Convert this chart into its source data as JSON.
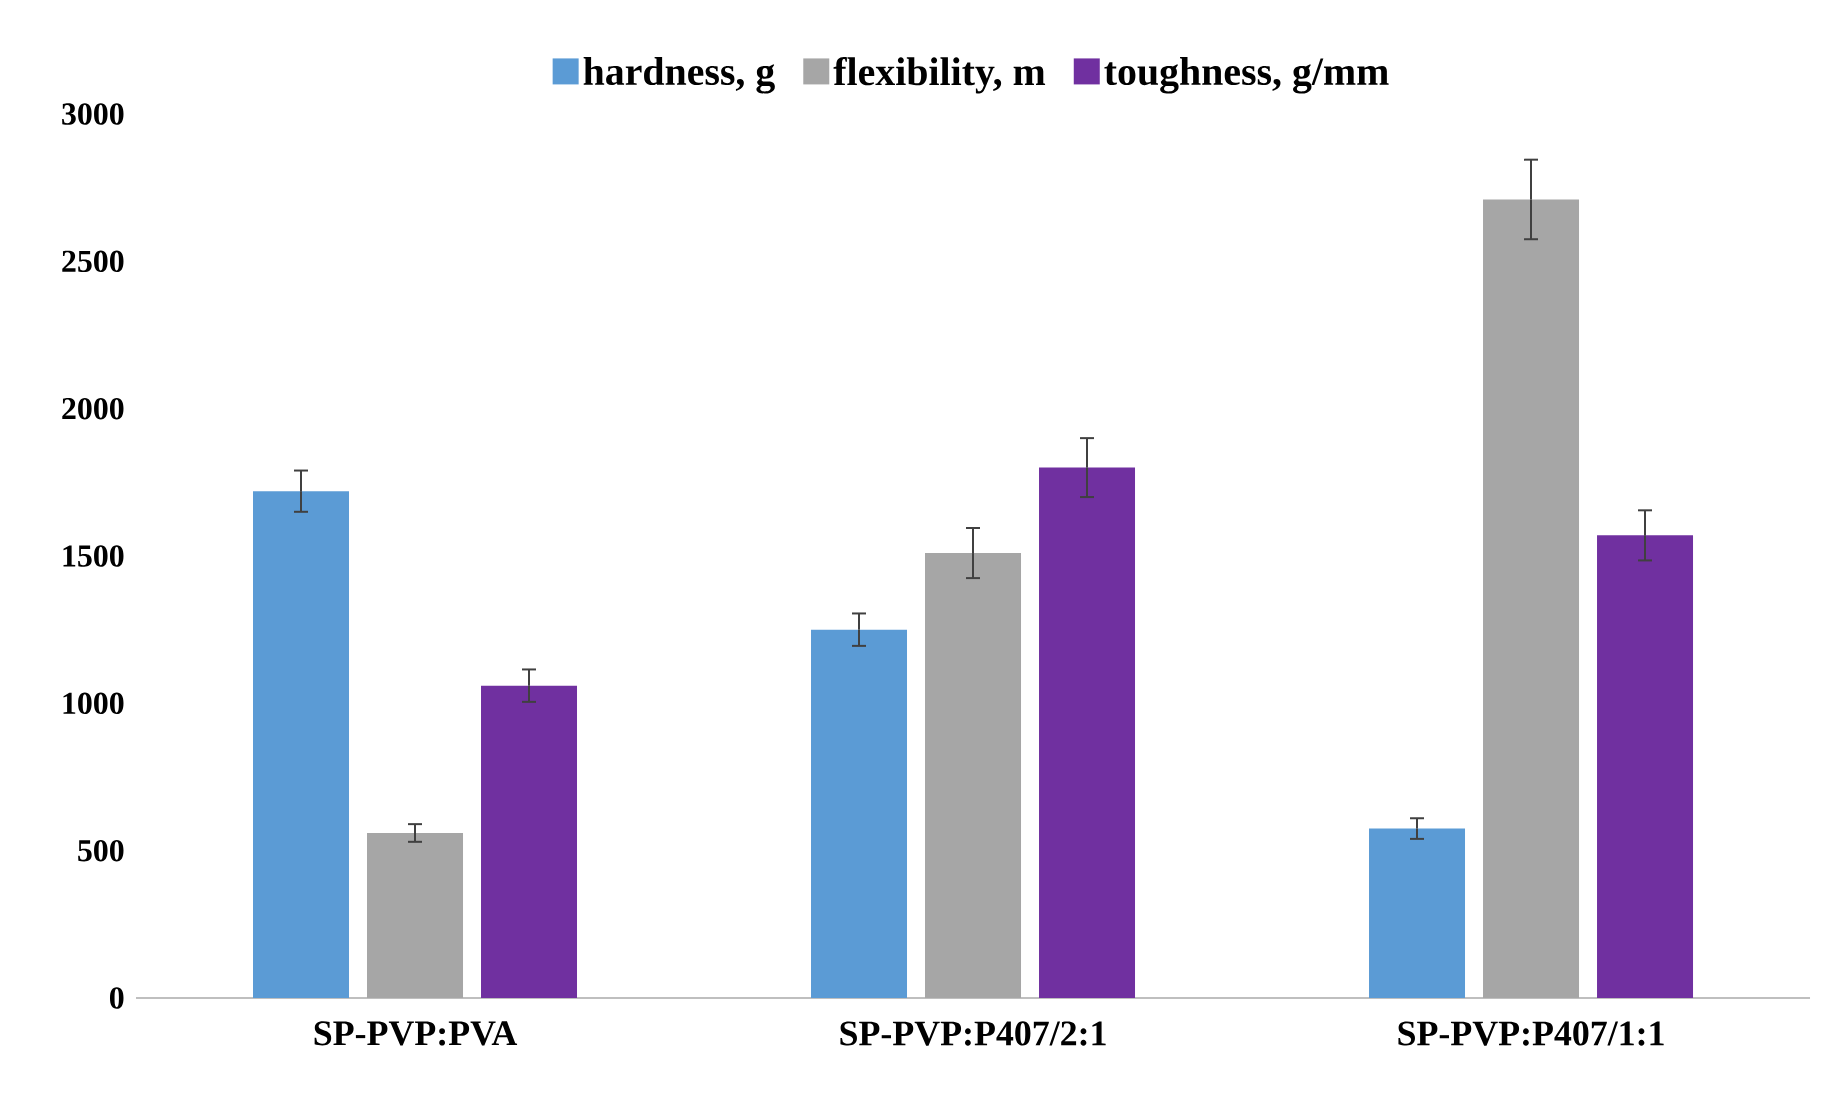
{
  "chart_data": {
    "type": "bar",
    "categories": [
      "SP-PVP:PVA",
      "SP-PVP:P407/2:1",
      "SP-PVP:P407/1:1"
    ],
    "series": [
      {
        "name": "hardness, g",
        "color": "#5b9bd5",
        "values": [
          1720,
          1250,
          575
        ],
        "errors": [
          70,
          55,
          35
        ]
      },
      {
        "name": "flexibility, m",
        "color": "#a6a6a6",
        "values": [
          560,
          1510,
          2710
        ],
        "errors": [
          30,
          85,
          135
        ]
      },
      {
        "name": "toughness, g/mm",
        "color": "#7030a0",
        "values": [
          1060,
          1800,
          1570
        ],
        "errors": [
          55,
          100,
          85
        ]
      }
    ],
    "ylim": [
      0,
      3000
    ],
    "yticks": [
      0,
      500,
      1000,
      1500,
      2000,
      2500,
      3000
    ],
    "grid": false,
    "legend": "top"
  }
}
